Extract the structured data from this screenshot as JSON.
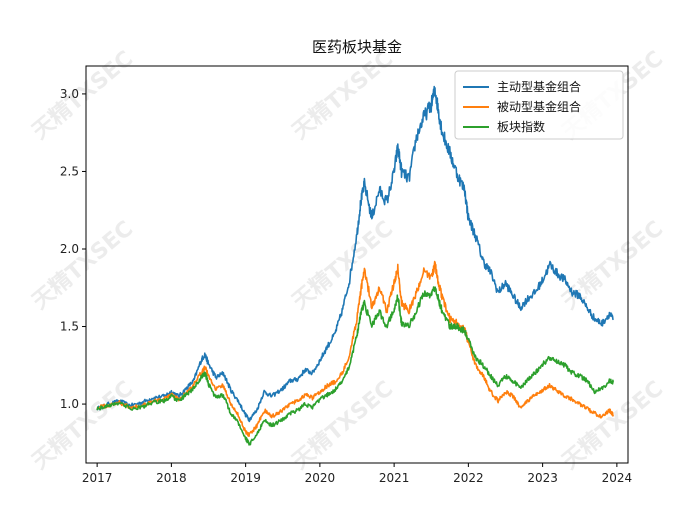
{
  "chart_data": {
    "type": "line",
    "title": "医药板块基金",
    "xlabel": "",
    "ylabel": "",
    "xlim": [
      2016.85,
      2024.15
    ],
    "ylim": [
      0.62,
      3.18
    ],
    "x_ticks": [
      2017,
      2018,
      2019,
      2020,
      2021,
      2022,
      2023,
      2024
    ],
    "x_tick_labels": [
      "2017",
      "2018",
      "2019",
      "2020",
      "2021",
      "2022",
      "2023",
      "2024"
    ],
    "y_ticks": [
      1.0,
      1.5,
      2.0,
      2.5,
      3.0
    ],
    "y_tick_labels": [
      "1.0",
      "1.5",
      "2.0",
      "2.5",
      "3.0"
    ],
    "grid": false,
    "legend_position": "top-right",
    "series": [
      {
        "name": "主动型基金组合",
        "color": "#1f77b4",
        "points": [
          [
            2017.0,
            0.97
          ],
          [
            2017.15,
            1.0
          ],
          [
            2017.3,
            1.02
          ],
          [
            2017.45,
            0.99
          ],
          [
            2017.6,
            1.01
          ],
          [
            2017.75,
            1.04
          ],
          [
            2017.9,
            1.05
          ],
          [
            2018.0,
            1.08
          ],
          [
            2018.1,
            1.05
          ],
          [
            2018.2,
            1.1
          ],
          [
            2018.3,
            1.15
          ],
          [
            2018.4,
            1.28
          ],
          [
            2018.45,
            1.32
          ],
          [
            2018.5,
            1.26
          ],
          [
            2018.6,
            1.17
          ],
          [
            2018.7,
            1.2
          ],
          [
            2018.8,
            1.09
          ],
          [
            2018.9,
            1.02
          ],
          [
            2019.0,
            0.93
          ],
          [
            2019.05,
            0.9
          ],
          [
            2019.15,
            0.96
          ],
          [
            2019.25,
            1.08
          ],
          [
            2019.35,
            1.05
          ],
          [
            2019.5,
            1.1
          ],
          [
            2019.6,
            1.15
          ],
          [
            2019.7,
            1.16
          ],
          [
            2019.8,
            1.22
          ],
          [
            2019.9,
            1.2
          ],
          [
            2020.0,
            1.28
          ],
          [
            2020.1,
            1.37
          ],
          [
            2020.2,
            1.45
          ],
          [
            2020.3,
            1.6
          ],
          [
            2020.4,
            1.8
          ],
          [
            2020.5,
            2.1
          ],
          [
            2020.55,
            2.3
          ],
          [
            2020.6,
            2.42
          ],
          [
            2020.7,
            2.2
          ],
          [
            2020.8,
            2.38
          ],
          [
            2020.9,
            2.3
          ],
          [
            2021.0,
            2.5
          ],
          [
            2021.05,
            2.66
          ],
          [
            2021.1,
            2.5
          ],
          [
            2021.2,
            2.45
          ],
          [
            2021.3,
            2.72
          ],
          [
            2021.4,
            2.85
          ],
          [
            2021.5,
            2.93
          ],
          [
            2021.55,
            3.03
          ],
          [
            2021.6,
            2.88
          ],
          [
            2021.65,
            2.75
          ],
          [
            2021.75,
            2.62
          ],
          [
            2021.85,
            2.48
          ],
          [
            2021.95,
            2.38
          ],
          [
            2022.0,
            2.2
          ],
          [
            2022.1,
            2.08
          ],
          [
            2022.2,
            1.92
          ],
          [
            2022.3,
            1.85
          ],
          [
            2022.4,
            1.72
          ],
          [
            2022.5,
            1.78
          ],
          [
            2022.6,
            1.7
          ],
          [
            2022.7,
            1.62
          ],
          [
            2022.8,
            1.68
          ],
          [
            2022.9,
            1.72
          ],
          [
            2023.0,
            1.8
          ],
          [
            2023.1,
            1.9
          ],
          [
            2023.2,
            1.84
          ],
          [
            2023.3,
            1.8
          ],
          [
            2023.4,
            1.72
          ],
          [
            2023.5,
            1.7
          ],
          [
            2023.6,
            1.62
          ],
          [
            2023.7,
            1.55
          ],
          [
            2023.8,
            1.52
          ],
          [
            2023.9,
            1.58
          ],
          [
            2023.95,
            1.55
          ]
        ]
      },
      {
        "name": "被动型基金组合",
        "color": "#ff7f0e",
        "points": [
          [
            2017.0,
            0.98
          ],
          [
            2017.15,
            0.99
          ],
          [
            2017.3,
            1.01
          ],
          [
            2017.45,
            0.98
          ],
          [
            2017.6,
            0.99
          ],
          [
            2017.75,
            1.02
          ],
          [
            2017.9,
            1.03
          ],
          [
            2018.0,
            1.06
          ],
          [
            2018.1,
            1.03
          ],
          [
            2018.2,
            1.07
          ],
          [
            2018.3,
            1.12
          ],
          [
            2018.4,
            1.2
          ],
          [
            2018.45,
            1.24
          ],
          [
            2018.5,
            1.18
          ],
          [
            2018.6,
            1.1
          ],
          [
            2018.7,
            1.12
          ],
          [
            2018.8,
            1.0
          ],
          [
            2018.9,
            0.93
          ],
          [
            2019.0,
            0.82
          ],
          [
            2019.05,
            0.8
          ],
          [
            2019.15,
            0.86
          ],
          [
            2019.25,
            0.96
          ],
          [
            2019.35,
            0.92
          ],
          [
            2019.5,
            0.96
          ],
          [
            2019.6,
            1.0
          ],
          [
            2019.7,
            1.02
          ],
          [
            2019.8,
            1.06
          ],
          [
            2019.9,
            1.04
          ],
          [
            2020.0,
            1.08
          ],
          [
            2020.1,
            1.12
          ],
          [
            2020.2,
            1.14
          ],
          [
            2020.3,
            1.2
          ],
          [
            2020.4,
            1.32
          ],
          [
            2020.5,
            1.55
          ],
          [
            2020.55,
            1.72
          ],
          [
            2020.6,
            1.88
          ],
          [
            2020.7,
            1.62
          ],
          [
            2020.8,
            1.75
          ],
          [
            2020.9,
            1.6
          ],
          [
            2021.0,
            1.78
          ],
          [
            2021.05,
            1.88
          ],
          [
            2021.1,
            1.65
          ],
          [
            2021.2,
            1.6
          ],
          [
            2021.3,
            1.72
          ],
          [
            2021.4,
            1.85
          ],
          [
            2021.5,
            1.82
          ],
          [
            2021.55,
            1.9
          ],
          [
            2021.6,
            1.78
          ],
          [
            2021.65,
            1.68
          ],
          [
            2021.75,
            1.55
          ],
          [
            2021.85,
            1.52
          ],
          [
            2021.95,
            1.48
          ],
          [
            2022.0,
            1.4
          ],
          [
            2022.1,
            1.25
          ],
          [
            2022.2,
            1.18
          ],
          [
            2022.3,
            1.08
          ],
          [
            2022.4,
            1.02
          ],
          [
            2022.5,
            1.08
          ],
          [
            2022.6,
            1.05
          ],
          [
            2022.7,
            0.98
          ],
          [
            2022.8,
            1.02
          ],
          [
            2022.9,
            1.06
          ],
          [
            2023.0,
            1.09
          ],
          [
            2023.1,
            1.12
          ],
          [
            2023.2,
            1.08
          ],
          [
            2023.3,
            1.05
          ],
          [
            2023.4,
            1.03
          ],
          [
            2023.5,
            1.0
          ],
          [
            2023.6,
            0.97
          ],
          [
            2023.7,
            0.94
          ],
          [
            2023.8,
            0.92
          ],
          [
            2023.9,
            0.96
          ],
          [
            2023.95,
            0.93
          ]
        ]
      },
      {
        "name": "板块指数",
        "color": "#2ca02c",
        "points": [
          [
            2017.0,
            0.97
          ],
          [
            2017.15,
            0.99
          ],
          [
            2017.3,
            1.01
          ],
          [
            2017.45,
            0.97
          ],
          [
            2017.6,
            0.98
          ],
          [
            2017.75,
            1.01
          ],
          [
            2017.9,
            1.02
          ],
          [
            2018.0,
            1.05
          ],
          [
            2018.1,
            1.02
          ],
          [
            2018.2,
            1.06
          ],
          [
            2018.3,
            1.1
          ],
          [
            2018.4,
            1.17
          ],
          [
            2018.45,
            1.2
          ],
          [
            2018.5,
            1.13
          ],
          [
            2018.6,
            1.04
          ],
          [
            2018.7,
            1.06
          ],
          [
            2018.8,
            0.94
          ],
          [
            2018.9,
            0.88
          ],
          [
            2019.0,
            0.78
          ],
          [
            2019.05,
            0.74
          ],
          [
            2019.15,
            0.8
          ],
          [
            2019.25,
            0.9
          ],
          [
            2019.35,
            0.86
          ],
          [
            2019.5,
            0.9
          ],
          [
            2019.6,
            0.94
          ],
          [
            2019.7,
            0.96
          ],
          [
            2019.8,
            1.0
          ],
          [
            2019.9,
            0.98
          ],
          [
            2020.0,
            1.03
          ],
          [
            2020.1,
            1.06
          ],
          [
            2020.2,
            1.09
          ],
          [
            2020.3,
            1.14
          ],
          [
            2020.4,
            1.25
          ],
          [
            2020.5,
            1.45
          ],
          [
            2020.55,
            1.58
          ],
          [
            2020.6,
            1.65
          ],
          [
            2020.7,
            1.5
          ],
          [
            2020.8,
            1.6
          ],
          [
            2020.9,
            1.5
          ],
          [
            2021.0,
            1.62
          ],
          [
            2021.05,
            1.7
          ],
          [
            2021.1,
            1.52
          ],
          [
            2021.2,
            1.5
          ],
          [
            2021.3,
            1.6
          ],
          [
            2021.4,
            1.72
          ],
          [
            2021.5,
            1.7
          ],
          [
            2021.55,
            1.76
          ],
          [
            2021.6,
            1.67
          ],
          [
            2021.65,
            1.6
          ],
          [
            2021.75,
            1.5
          ],
          [
            2021.85,
            1.5
          ],
          [
            2021.95,
            1.47
          ],
          [
            2022.0,
            1.42
          ],
          [
            2022.1,
            1.3
          ],
          [
            2022.2,
            1.25
          ],
          [
            2022.3,
            1.18
          ],
          [
            2022.4,
            1.12
          ],
          [
            2022.5,
            1.18
          ],
          [
            2022.6,
            1.15
          ],
          [
            2022.7,
            1.1
          ],
          [
            2022.8,
            1.16
          ],
          [
            2022.9,
            1.2
          ],
          [
            2023.0,
            1.26
          ],
          [
            2023.1,
            1.3
          ],
          [
            2023.2,
            1.27
          ],
          [
            2023.3,
            1.25
          ],
          [
            2023.4,
            1.2
          ],
          [
            2023.5,
            1.18
          ],
          [
            2023.6,
            1.15
          ],
          [
            2023.7,
            1.08
          ],
          [
            2023.8,
            1.1
          ],
          [
            2023.9,
            1.15
          ],
          [
            2023.95,
            1.14
          ]
        ]
      }
    ]
  },
  "watermark": {
    "text": "天精TXSEC"
  }
}
